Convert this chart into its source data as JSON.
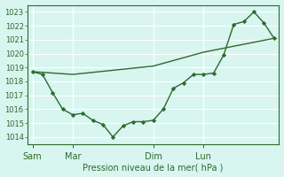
{
  "bg_color": "#d8f5f0",
  "grid_color": "#ffffff",
  "line_color": "#2d6a2d",
  "marker_color": "#2d6a2d",
  "xlabel": "Pression niveau de la mer( hPa )",
  "xlabel_color": "#2d6a2d",
  "tick_color": "#2d6a2d",
  "ylim": [
    1013.5,
    1023.5
  ],
  "yticks": [
    1014,
    1015,
    1016,
    1017,
    1018,
    1019,
    1020,
    1021,
    1022,
    1023
  ],
  "day_labels": [
    "Sam",
    "Mar",
    "Dim",
    "Lun"
  ],
  "day_positions": [
    0,
    4,
    12,
    17
  ],
  "line1_x": [
    0,
    1,
    2,
    3,
    4,
    5,
    6,
    7,
    8,
    9,
    10,
    11,
    12,
    13,
    14,
    15,
    16,
    17,
    18,
    19,
    20,
    21,
    22,
    23,
    24
  ],
  "line1_y": [
    1018.7,
    1018.5,
    1017.2,
    1016.0,
    1015.6,
    1015.7,
    1015.2,
    1014.9,
    1014.0,
    1014.8,
    1015.1,
    1015.1,
    1015.2,
    1016.0,
    1017.5,
    1017.9,
    1018.5,
    1018.5,
    1018.6,
    1019.9,
    1022.1,
    1022.3,
    1023.0,
    1022.2,
    1021.1
  ],
  "line2_x": [
    0,
    4,
    12,
    17,
    24
  ],
  "line2_y": [
    1018.7,
    1018.5,
    1019.1,
    1020.1,
    1021.1
  ],
  "xlim": [
    -0.5,
    24.5
  ]
}
